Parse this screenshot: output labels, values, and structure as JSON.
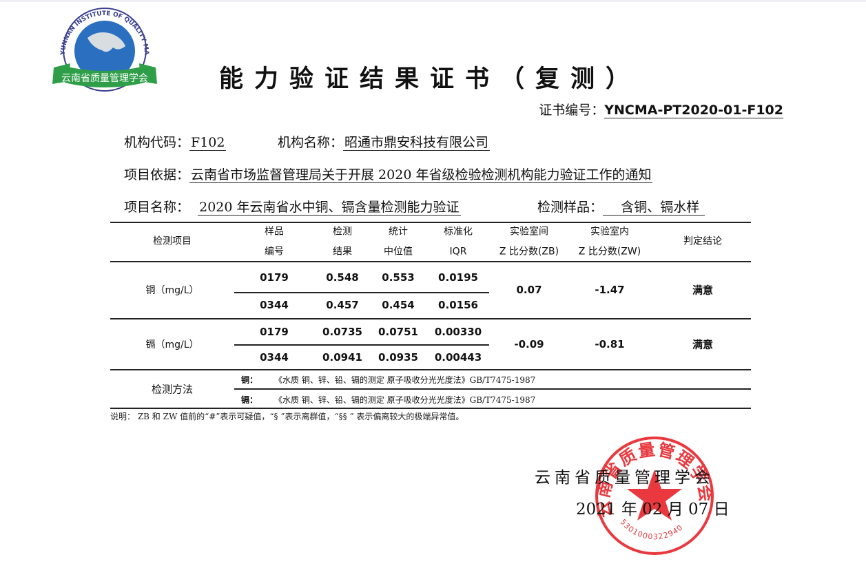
{
  "logo": {
    "text_en": "YUNNAN INSTITUTE OF QUALITY MANAGEMENT",
    "text_cn": "云南省质量管理学会"
  },
  "title": "能力验证结果证书（复测）",
  "certificate": {
    "label": "证书编号：",
    "value": "YNCMA-PT2020-01-F102"
  },
  "org_code": {
    "label": "机构代码：",
    "value": "F102"
  },
  "org_name": {
    "label": "机构名称：",
    "value": "昭通市鼎安科技有限公司"
  },
  "basis": {
    "label": "项目依据：",
    "value": "云南省市场监督管理局关于开展 2020 年省级检验检测机构能力验证工作的通知"
  },
  "project": {
    "label": "项目名称：",
    "value": "2020 年云南省水中铜、镉含量检测能力验证",
    "sample_label": "检测样品：",
    "sample_value": "含铜、镉水样"
  },
  "table": {
    "headers": [
      [
        "检测项目"
      ],
      [
        "样品",
        "编号"
      ],
      [
        "检测",
        "结果"
      ],
      [
        "统计",
        "中位值"
      ],
      [
        "标准化",
        "IQR"
      ],
      [
        "实验室间",
        "Z 比分数(ZB)"
      ],
      [
        "实验室内",
        "Z 比分数(ZW)"
      ],
      [
        "判定结论"
      ]
    ],
    "groups": [
      {
        "item": "铜（mg/L）",
        "zb": "0.07",
        "zw": "-1.47",
        "conclusion": "满意",
        "rows": [
          [
            "0179",
            "0.548",
            "0.553",
            "0.0195"
          ],
          [
            "0344",
            "0.457",
            "0.454",
            "0.0156"
          ]
        ]
      },
      {
        "item": "镉（mg/L）",
        "zb": "-0.09",
        "zw": "-0.81",
        "conclusion": "满意",
        "rows": [
          [
            "0179",
            "0.0735",
            "0.0751",
            "0.00330"
          ],
          [
            "0344",
            "0.0941",
            "0.0935",
            "0.00443"
          ]
        ]
      }
    ],
    "method_label": "检测方法",
    "methods": [
      {
        "element": "铜：",
        "method": "《水质 铜、锌、铅、镉的测定 原子吸收分光光度法》GB/T7475-1987"
      },
      {
        "element": "镉：",
        "method": "《水质 铜、锌、铅、镉的测定 原子吸收分光光度法》GB/T7475-1987"
      }
    ]
  },
  "note": "说明： ZB 和 ZW 值前的“#”表示可疑值，“§ ”表示离群值，“§§ ” 表示偏离较大的极端异常值。",
  "issuer": "云南省质量管理学会",
  "date": "2021 年 02 月 07 日",
  "stamp": {
    "text": "云南省质量管理学会",
    "number": "5301000322940",
    "color": "#e8242a"
  },
  "colors": {
    "logo_green": "#2e9e48",
    "logo_blue": "#2a6fc0"
  }
}
